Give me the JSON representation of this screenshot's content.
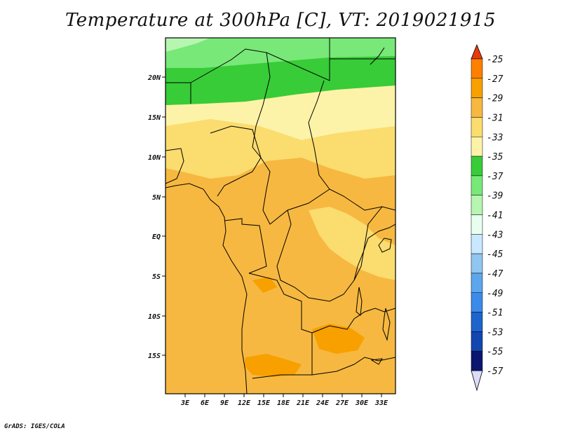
{
  "title": "Temperature at 300hPa [C], VT: 2019021915",
  "credit": "GrADS: IGES/COLA",
  "map": {
    "lon_ticks": [
      "3E",
      "6E",
      "9E",
      "12E",
      "15E",
      "18E",
      "21E",
      "24E",
      "27E",
      "30E",
      "33E"
    ],
    "lat_ticks": [
      "20N",
      "15N",
      "10N",
      "5N",
      "EQ",
      "5S",
      "10S",
      "15S"
    ]
  },
  "colorbar": {
    "labels": [
      "-25",
      "-27",
      "-29",
      "-31",
      "-33",
      "-35",
      "-37",
      "-39",
      "-41",
      "-43",
      "-45",
      "-47",
      "-49",
      "-51",
      "-53",
      "-55",
      "-57"
    ],
    "colors": [
      "#f04a00",
      "#ff7f00",
      "#f7a000",
      "#f6b840",
      "#fbdc6e",
      "#fdf3a8",
      "#38cc38",
      "#78e878",
      "#b6f6b0",
      "#e8fff0",
      "#c8e8ff",
      "#90c6f0",
      "#5ca6ec",
      "#3c8aea",
      "#1e64cc",
      "#1246b0",
      "#0a1670"
    ],
    "top_color": "#e83b0c",
    "bottom_color": "#dcdcf8"
  },
  "field_colors": {
    "c25": "#f04a00",
    "c27": "#f7a000",
    "c29": "#f6b840",
    "c31": "#fbdc6e",
    "c33": "#fdf3a8",
    "c35": "#38cc38",
    "c37": "#78e878",
    "c39": "#b6f6b0"
  }
}
